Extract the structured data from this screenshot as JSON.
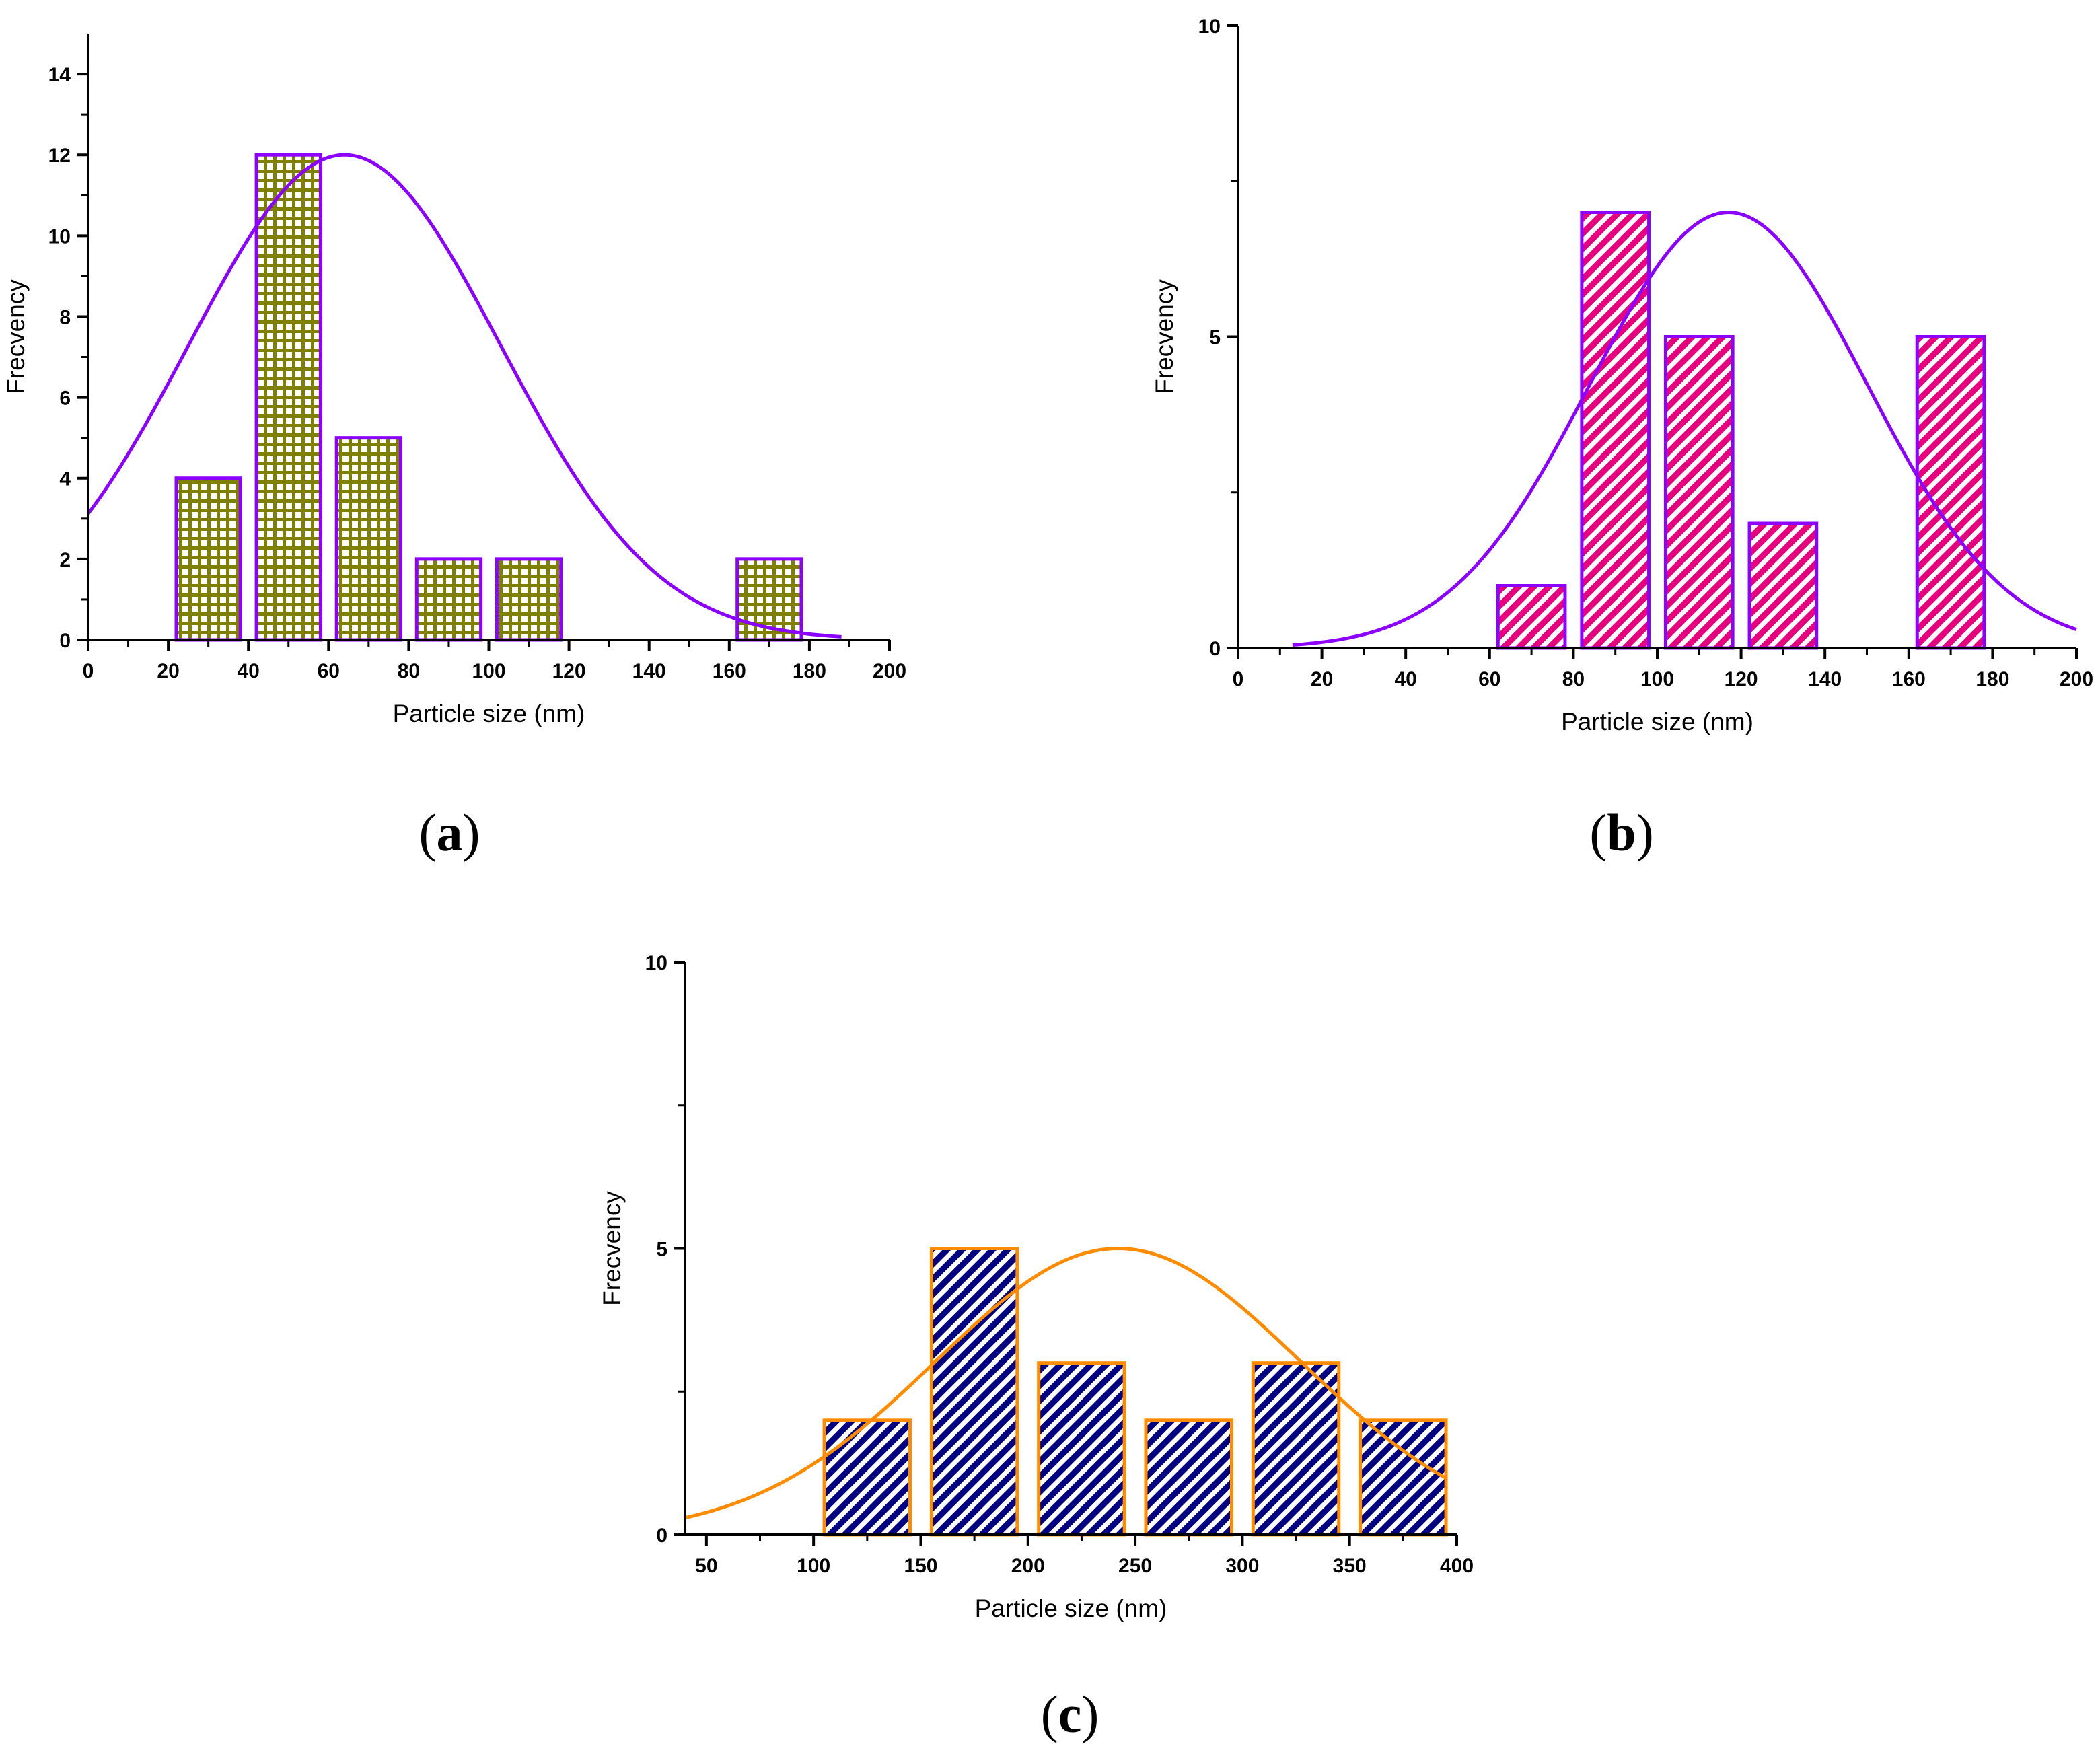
{
  "chart_data": [
    {
      "type": "bar",
      "panel_label": "a",
      "xlabel": "Particle size (nm)",
      "ylabel": "Frecvency",
      "xlim": [
        0,
        200
      ],
      "ylim": [
        0,
        15
      ],
      "xticks": [
        0,
        20,
        40,
        60,
        80,
        100,
        120,
        140,
        160,
        180,
        200
      ],
      "yticks": [
        0,
        2,
        4,
        6,
        8,
        10,
        12,
        14
      ],
      "bars": [
        {
          "x0": 22,
          "x1": 38,
          "value": 4
        },
        {
          "x0": 42,
          "x1": 58,
          "value": 12
        },
        {
          "x0": 62,
          "x1": 78,
          "value": 5
        },
        {
          "x0": 82,
          "x1": 98,
          "value": 2
        },
        {
          "x0": 102,
          "x1": 118,
          "value": 2
        },
        {
          "x0": 162,
          "x1": 178,
          "value": 2
        }
      ],
      "fit": {
        "type": "gaussian",
        "mean": 64,
        "sigma": 39,
        "peak": 12,
        "x_range": [
          0,
          188
        ]
      },
      "bar_fill": "#808000",
      "bar_pattern": "grid",
      "bar_edge": "#8B00FF",
      "fit_color": "#8B00FF"
    },
    {
      "type": "bar",
      "panel_label": "b",
      "xlabel": "Particle size (nm)",
      "ylabel": "Frecvency",
      "xlim": [
        0,
        200
      ],
      "ylim": [
        0,
        10
      ],
      "xticks": [
        0,
        20,
        40,
        60,
        80,
        100,
        120,
        140,
        160,
        180,
        200
      ],
      "yticks": [
        0,
        5,
        10
      ],
      "bars": [
        {
          "x0": 62,
          "x1": 78,
          "value": 1
        },
        {
          "x0": 82,
          "x1": 98,
          "value": 7
        },
        {
          "x0": 102,
          "x1": 118,
          "value": 5
        },
        {
          "x0": 122,
          "x1": 138,
          "value": 2
        },
        {
          "x0": 162,
          "x1": 178,
          "value": 5
        }
      ],
      "fit": {
        "type": "gaussian",
        "mean": 117,
        "sigma": 33,
        "peak": 7,
        "x_range": [
          13,
          200
        ]
      },
      "bar_fill": "#E6007E",
      "bar_pattern": "diagonal",
      "bar_edge": "#8B00FF",
      "fit_color": "#8B00FF"
    },
    {
      "type": "bar",
      "panel_label": "c",
      "xlabel": "Particle size (nm)",
      "ylabel": "Frecvency",
      "xlim": [
        40,
        400
      ],
      "ylim": [
        0,
        10
      ],
      "xticks": [
        50,
        100,
        150,
        200,
        250,
        300,
        350,
        400
      ],
      "yticks": [
        0,
        5,
        10
      ],
      "bars": [
        {
          "x0": 105,
          "x1": 145,
          "value": 2
        },
        {
          "x0": 155,
          "x1": 195,
          "value": 5
        },
        {
          "x0": 205,
          "x1": 245,
          "value": 3
        },
        {
          "x0": 255,
          "x1": 295,
          "value": 2
        },
        {
          "x0": 305,
          "x1": 345,
          "value": 3
        },
        {
          "x0": 355,
          "x1": 395,
          "value": 2
        }
      ],
      "fit": {
        "type": "gaussian",
        "mean": 242,
        "sigma": 85,
        "peak": 5,
        "x_range": [
          40,
          395
        ]
      },
      "bar_fill": "#000080",
      "bar_pattern": "diagonal",
      "bar_edge": "#FF8C00",
      "fit_color": "#FF8C00"
    }
  ]
}
